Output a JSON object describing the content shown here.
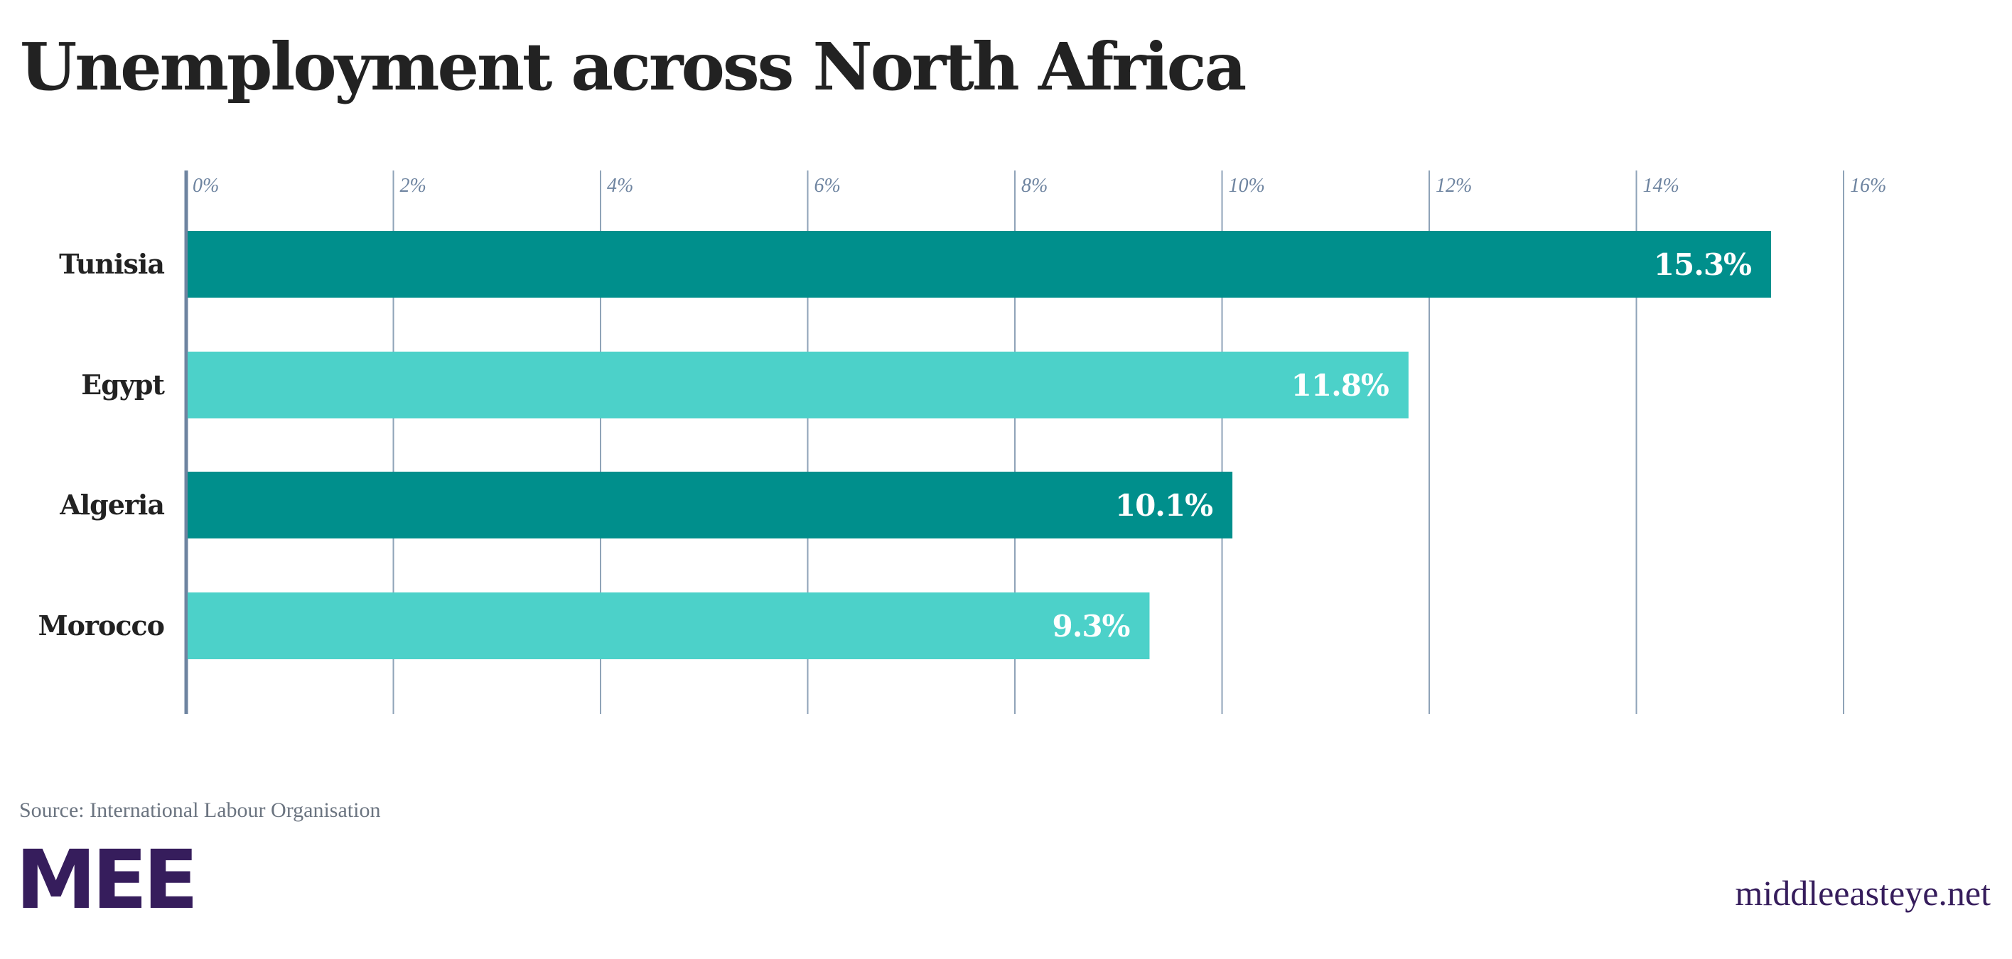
{
  "chart_data": {
    "type": "bar",
    "orientation": "horizontal",
    "title": "Unemployment across North Africa",
    "categories": [
      "Tunisia",
      "Egypt",
      "Algeria",
      "Morocco"
    ],
    "values": [
      15.3,
      11.8,
      10.1,
      9.3
    ],
    "value_labels": [
      "15.3%",
      "11.8%",
      "10.1%",
      "9.3%"
    ],
    "bar_colors": [
      "#008f8c",
      "#4cd1c9",
      "#008f8c",
      "#4cd1c9"
    ],
    "xlim": [
      0,
      16
    ],
    "xticks": [
      0,
      2,
      4,
      6,
      8,
      10,
      12,
      14,
      16
    ],
    "xtick_labels": [
      "0%",
      "2%",
      "4%",
      "6%",
      "8%",
      "10%",
      "12%",
      "14%",
      "16%"
    ],
    "grid": true,
    "xlabel": "",
    "ylabel": ""
  },
  "footer": {
    "source": "Source: International Labour Organisation",
    "logo_text": "MEE",
    "site": "middleeasteye.net"
  },
  "colors": {
    "brand": "#361d5c",
    "grid": "#8fa3b8",
    "axis": "#6e84a0"
  }
}
